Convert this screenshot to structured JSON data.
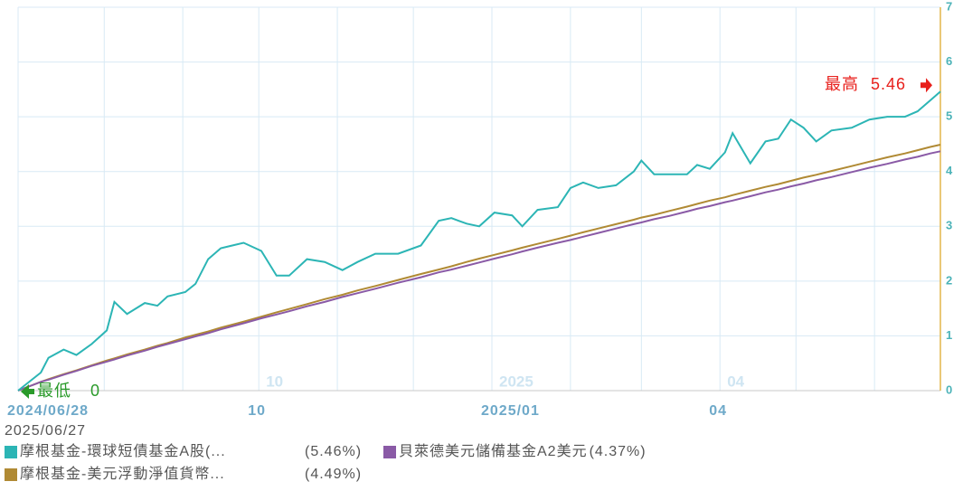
{
  "chart_data": {
    "type": "line",
    "x": [
      "2024/06/28",
      "2024/07/07",
      "2024/07/10",
      "2024/07/16",
      "2024/07/21",
      "2024/07/27",
      "2024/08/02",
      "2024/08/05",
      "2024/08/10",
      "2024/08/17",
      "2024/08/22",
      "2024/08/26",
      "2024/09/02",
      "2024/09/06",
      "2024/09/11",
      "2024/09/16",
      "2024/09/25",
      "2024/10/02",
      "2024/10/08",
      "2024/10/13",
      "2024/10/20",
      "2024/10/27",
      "2024/11/03",
      "2024/11/09",
      "2024/11/16",
      "2024/11/25",
      "2024/12/04",
      "2024/12/11",
      "2024/12/16",
      "2024/12/22",
      "2024/12/27",
      "2025/01/02",
      "2025/01/09",
      "2025/01/13",
      "2025/01/19",
      "2025/01/27",
      "2025/02/01",
      "2025/02/06",
      "2025/02/12",
      "2025/02/19",
      "2025/02/26",
      "2025/03/01",
      "2025/03/06",
      "2025/03/12",
      "2025/03/19",
      "2025/03/23",
      "2025/03/28",
      "2025/04/03",
      "2025/04/06",
      "2025/04/13",
      "2025/04/19",
      "2025/04/24",
      "2025/04/29",
      "2025/05/04",
      "2025/05/09",
      "2025/05/15",
      "2025/05/23",
      "2025/05/30",
      "2025/06/06",
      "2025/06/13",
      "2025/06/18",
      "2025/06/23",
      "2025/06/27"
    ],
    "series": [
      {
        "name": "摩根基金-環球短債基金A股(...",
        "legend_label": "(5.46%)",
        "color": "#2cb5b5",
        "values": [
          0,
          0.33,
          0.6,
          0.75,
          0.65,
          0.85,
          1.1,
          1.62,
          1.4,
          1.6,
          1.55,
          1.72,
          1.8,
          1.95,
          2.4,
          2.6,
          2.7,
          2.55,
          2.1,
          2.1,
          2.4,
          2.35,
          2.2,
          2.35,
          2.5,
          2.5,
          2.65,
          3.1,
          3.15,
          3.05,
          3.0,
          3.25,
          3.2,
          3.0,
          3.3,
          3.35,
          3.7,
          3.8,
          3.7,
          3.75,
          4.0,
          4.2,
          3.95,
          3.95,
          3.95,
          4.12,
          4.05,
          4.35,
          4.7,
          4.15,
          4.55,
          4.6,
          4.95,
          4.8,
          4.55,
          4.75,
          4.8,
          4.95,
          5.0,
          5.0,
          5.1,
          5.3,
          5.46
        ]
      },
      {
        "name": "貝萊德美元儲備基金A2美元",
        "legend_label": "(4.37%)",
        "color": "#8a5aa6",
        "values": [
          0,
          0.16,
          0.2,
          0.29,
          0.36,
          0.45,
          0.53,
          0.57,
          0.64,
          0.73,
          0.8,
          0.85,
          0.94,
          0.99,
          1.05,
          1.12,
          1.23,
          1.32,
          1.39,
          1.45,
          1.54,
          1.62,
          1.71,
          1.78,
          1.86,
          1.97,
          2.07,
          2.16,
          2.21,
          2.28,
          2.34,
          2.41,
          2.49,
          2.54,
          2.61,
          2.7,
          2.75,
          2.81,
          2.88,
          2.96,
          3.04,
          3.07,
          3.13,
          3.19,
          3.27,
          3.32,
          3.37,
          3.44,
          3.47,
          3.55,
          3.62,
          3.67,
          3.73,
          3.78,
          3.84,
          3.9,
          3.99,
          4.07,
          4.14,
          4.22,
          4.27,
          4.33,
          4.37
        ]
      },
      {
        "name": "摩根基金-美元浮動淨值貨幣...",
        "legend_label": "(4.49%)",
        "color": "#b08a34",
        "values": [
          0,
          0.16,
          0.21,
          0.3,
          0.37,
          0.46,
          0.55,
          0.59,
          0.66,
          0.75,
          0.82,
          0.87,
          0.97,
          1.02,
          1.08,
          1.15,
          1.26,
          1.35,
          1.43,
          1.49,
          1.58,
          1.67,
          1.75,
          1.83,
          1.91,
          2.02,
          2.13,
          2.21,
          2.27,
          2.35,
          2.41,
          2.48,
          2.56,
          2.61,
          2.68,
          2.77,
          2.83,
          2.89,
          2.96,
          3.04,
          3.12,
          3.16,
          3.21,
          3.28,
          3.36,
          3.41,
          3.47,
          3.53,
          3.57,
          3.65,
          3.72,
          3.77,
          3.83,
          3.89,
          3.94,
          4.01,
          4.1,
          4.18,
          4.26,
          4.33,
          4.39,
          4.45,
          4.49
        ]
      }
    ],
    "xlim": [
      "2024/06/28",
      "2025/06/27"
    ],
    "xticks": [
      {
        "value": "2024/06/28",
        "label": "2024/06/28"
      },
      {
        "value": "2024/10/01",
        "label": "10"
      },
      {
        "value": "2025/01/01",
        "label": "2025/01"
      },
      {
        "value": "2025/04/01",
        "label": "04"
      }
    ],
    "xminorticks": [
      "2024/08/01",
      "2024/09/01",
      "2024/11/01",
      "2024/12/01",
      "2025/02/01",
      "2025/03/01",
      "2025/05/01",
      "2025/06/01"
    ],
    "inner_labels": [
      {
        "value": "2024/10/01",
        "label": "10"
      },
      {
        "value": "2025/01/01",
        "label": "2025"
      },
      {
        "value": "2025/04/01",
        "label": "04"
      }
    ],
    "ylim": [
      0,
      7
    ],
    "yticks": [
      0,
      1,
      2,
      3,
      4,
      5,
      6,
      7
    ],
    "grid": true,
    "annotations": [
      {
        "label": "最高",
        "value": 5.46,
        "color": "#e8201c"
      },
      {
        "label": "最低",
        "value": 0,
        "color": "#2a9a2a"
      }
    ]
  }
}
